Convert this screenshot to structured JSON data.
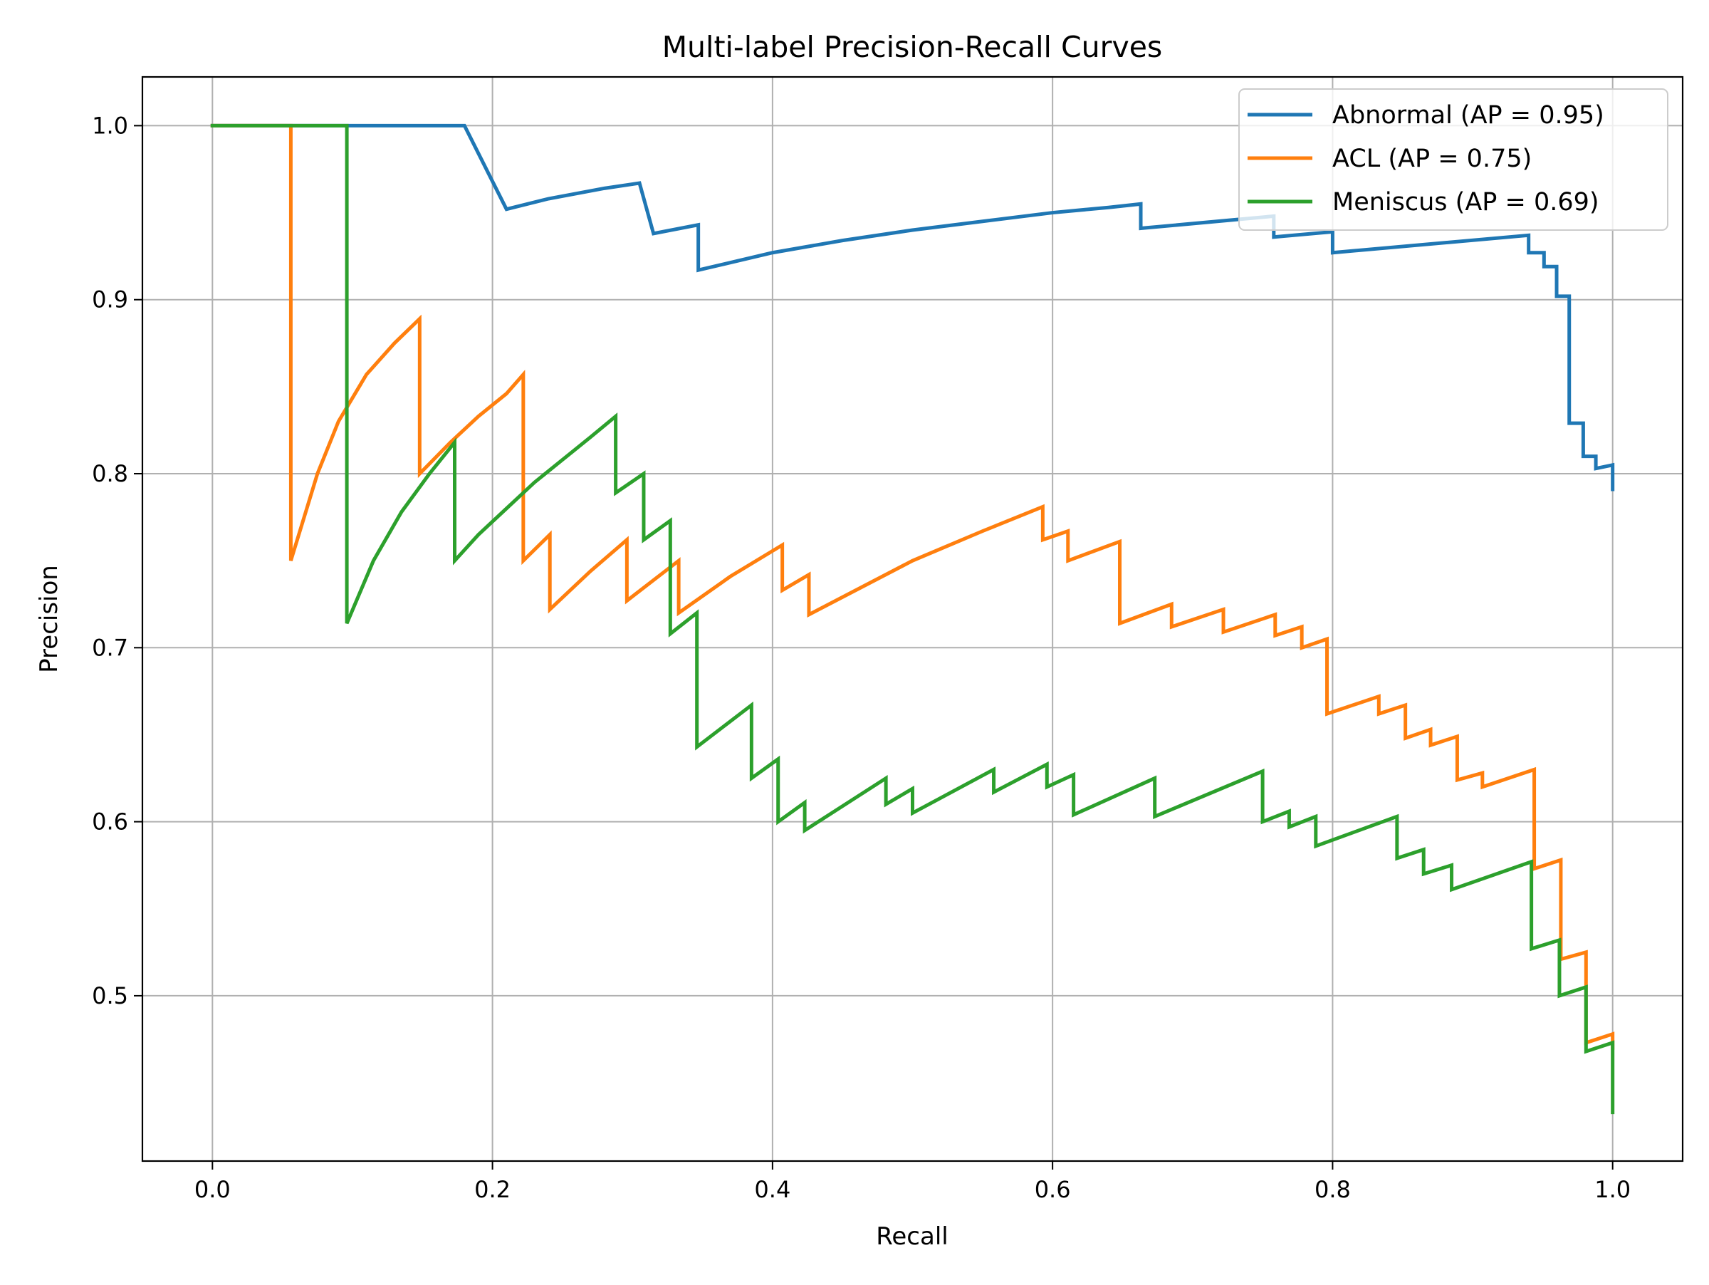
{
  "chart_data": {
    "type": "line",
    "title": "Multi-label Precision-Recall Curves",
    "xlabel": "Recall",
    "ylabel": "Precision",
    "xlim": [
      -0.05,
      1.05
    ],
    "ylim": [
      0.405,
      1.028
    ],
    "xticks": [
      0.0,
      0.2,
      0.4,
      0.6,
      0.8,
      1.0
    ],
    "xtick_labels": [
      "0.0",
      "0.2",
      "0.4",
      "0.6",
      "0.8",
      "1.0"
    ],
    "yticks": [
      0.5,
      0.6,
      0.7,
      0.8,
      0.9,
      1.0
    ],
    "ytick_labels": [
      "0.5",
      "0.6",
      "0.7",
      "0.8",
      "0.9",
      "1.0"
    ],
    "grid": true,
    "legend_position": "top-right",
    "series": [
      {
        "name": "Abnormal (AP = 0.95)",
        "color": "#1f77b4",
        "points": [
          [
            0.0,
            1.0
          ],
          [
            0.18,
            1.0
          ],
          [
            0.21,
            0.952
          ],
          [
            0.24,
            0.958
          ],
          [
            0.28,
            0.964
          ],
          [
            0.305,
            0.967
          ],
          [
            0.315,
            0.938
          ],
          [
            0.347,
            0.943
          ],
          [
            0.347,
            0.917
          ],
          [
            0.4,
            0.927
          ],
          [
            0.45,
            0.934
          ],
          [
            0.5,
            0.94
          ],
          [
            0.55,
            0.945
          ],
          [
            0.6,
            0.95
          ],
          [
            0.64,
            0.953
          ],
          [
            0.663,
            0.955
          ],
          [
            0.663,
            0.941
          ],
          [
            0.758,
            0.948
          ],
          [
            0.758,
            0.936
          ],
          [
            0.8,
            0.939
          ],
          [
            0.8,
            0.927
          ],
          [
            0.94,
            0.937
          ],
          [
            0.94,
            0.927
          ],
          [
            0.951,
            0.927
          ],
          [
            0.951,
            0.919
          ],
          [
            0.96,
            0.919
          ],
          [
            0.96,
            0.902
          ],
          [
            0.969,
            0.902
          ],
          [
            0.969,
            0.829
          ],
          [
            0.979,
            0.829
          ],
          [
            0.979,
            0.81
          ],
          [
            0.988,
            0.81
          ],
          [
            0.988,
            0.803
          ],
          [
            1.0,
            0.805
          ],
          [
            1.0,
            0.791
          ]
        ]
      },
      {
        "name": "ACL (AP = 0.75)",
        "color": "#ff7f0e",
        "points": [
          [
            0.0,
            1.0
          ],
          [
            0.056,
            1.0
          ],
          [
            0.056,
            0.75
          ],
          [
            0.075,
            0.8
          ],
          [
            0.09,
            0.83
          ],
          [
            0.11,
            0.857
          ],
          [
            0.13,
            0.875
          ],
          [
            0.148,
            0.889
          ],
          [
            0.148,
            0.8
          ],
          [
            0.17,
            0.818
          ],
          [
            0.19,
            0.833
          ],
          [
            0.21,
            0.846
          ],
          [
            0.222,
            0.857
          ],
          [
            0.222,
            0.75
          ],
          [
            0.241,
            0.765
          ],
          [
            0.241,
            0.722
          ],
          [
            0.27,
            0.744
          ],
          [
            0.296,
            0.762
          ],
          [
            0.296,
            0.727
          ],
          [
            0.333,
            0.75
          ],
          [
            0.333,
            0.72
          ],
          [
            0.37,
            0.741
          ],
          [
            0.407,
            0.759
          ],
          [
            0.407,
            0.733
          ],
          [
            0.426,
            0.742
          ],
          [
            0.426,
            0.719
          ],
          [
            0.5,
            0.75
          ],
          [
            0.55,
            0.767
          ],
          [
            0.593,
            0.781
          ],
          [
            0.593,
            0.762
          ],
          [
            0.611,
            0.767
          ],
          [
            0.611,
            0.75
          ],
          [
            0.648,
            0.761
          ],
          [
            0.648,
            0.714
          ],
          [
            0.685,
            0.725
          ],
          [
            0.685,
            0.712
          ],
          [
            0.722,
            0.722
          ],
          [
            0.722,
            0.709
          ],
          [
            0.759,
            0.719
          ],
          [
            0.759,
            0.707
          ],
          [
            0.778,
            0.712
          ],
          [
            0.778,
            0.7
          ],
          [
            0.796,
            0.705
          ],
          [
            0.796,
            0.662
          ],
          [
            0.833,
            0.672
          ],
          [
            0.833,
            0.662
          ],
          [
            0.852,
            0.667
          ],
          [
            0.852,
            0.648
          ],
          [
            0.87,
            0.653
          ],
          [
            0.87,
            0.644
          ],
          [
            0.889,
            0.649
          ],
          [
            0.889,
            0.624
          ],
          [
            0.907,
            0.628
          ],
          [
            0.907,
            0.62
          ],
          [
            0.944,
            0.63
          ],
          [
            0.944,
            0.573
          ],
          [
            0.963,
            0.578
          ],
          [
            0.963,
            0.521
          ],
          [
            0.981,
            0.525
          ],
          [
            0.981,
            0.473
          ],
          [
            1.0,
            0.478
          ],
          [
            1.0,
            0.47
          ]
        ]
      },
      {
        "name": "Meniscus (AP = 0.69)",
        "color": "#2ca02c",
        "points": [
          [
            0.0,
            1.0
          ],
          [
            0.096,
            1.0
          ],
          [
            0.096,
            0.714
          ],
          [
            0.115,
            0.75
          ],
          [
            0.135,
            0.778
          ],
          [
            0.155,
            0.8
          ],
          [
            0.173,
            0.818
          ],
          [
            0.173,
            0.75
          ],
          [
            0.19,
            0.765
          ],
          [
            0.21,
            0.78
          ],
          [
            0.23,
            0.795
          ],
          [
            0.25,
            0.808
          ],
          [
            0.27,
            0.821
          ],
          [
            0.288,
            0.833
          ],
          [
            0.288,
            0.789
          ],
          [
            0.308,
            0.8
          ],
          [
            0.308,
            0.762
          ],
          [
            0.327,
            0.773
          ],
          [
            0.327,
            0.708
          ],
          [
            0.346,
            0.72
          ],
          [
            0.346,
            0.643
          ],
          [
            0.385,
            0.667
          ],
          [
            0.385,
            0.625
          ],
          [
            0.404,
            0.636
          ],
          [
            0.404,
            0.6
          ],
          [
            0.423,
            0.611
          ],
          [
            0.423,
            0.595
          ],
          [
            0.481,
            0.625
          ],
          [
            0.481,
            0.61
          ],
          [
            0.5,
            0.619
          ],
          [
            0.5,
            0.605
          ],
          [
            0.558,
            0.63
          ],
          [
            0.558,
            0.617
          ],
          [
            0.596,
            0.633
          ],
          [
            0.596,
            0.62
          ],
          [
            0.615,
            0.627
          ],
          [
            0.615,
            0.604
          ],
          [
            0.673,
            0.625
          ],
          [
            0.673,
            0.603
          ],
          [
            0.75,
            0.629
          ],
          [
            0.75,
            0.6
          ],
          [
            0.769,
            0.606
          ],
          [
            0.769,
            0.597
          ],
          [
            0.788,
            0.603
          ],
          [
            0.788,
            0.586
          ],
          [
            0.846,
            0.603
          ],
          [
            0.846,
            0.579
          ],
          [
            0.865,
            0.584
          ],
          [
            0.865,
            0.57
          ],
          [
            0.885,
            0.575
          ],
          [
            0.885,
            0.561
          ],
          [
            0.942,
            0.577
          ],
          [
            0.942,
            0.527
          ],
          [
            0.962,
            0.532
          ],
          [
            0.962,
            0.5
          ],
          [
            0.981,
            0.505
          ],
          [
            0.981,
            0.468
          ],
          [
            1.0,
            0.473
          ],
          [
            1.0,
            0.433
          ]
        ]
      }
    ]
  }
}
